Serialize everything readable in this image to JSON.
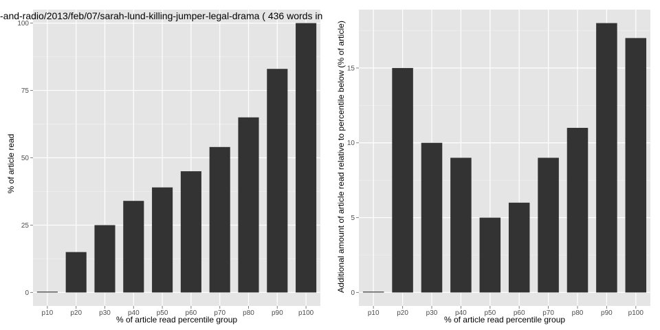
{
  "colors": {
    "panel_background": "#e5e5e5",
    "major_grid": "#ffffff",
    "minor_grid": "#f2f2f2",
    "bar": "#333333",
    "tick_label": "#4d4d4d",
    "text": "#000000"
  },
  "chart_data": [
    {
      "type": "bar",
      "title": "-and-radio/2013/feb/07/sarah-lund-killing-jumper-legal-drama ( 436 words in",
      "xlabel": "% of article read percentile group",
      "ylabel": "% of article read",
      "categories": [
        "p10",
        "p20",
        "p30",
        "p40",
        "p50",
        "p60",
        "p70",
        "p80",
        "p90",
        "p100"
      ],
      "values": [
        0,
        15,
        25,
        34,
        39,
        45,
        54,
        65,
        83,
        100
      ],
      "ylim": [
        -5,
        105
      ],
      "yticks": [
        0,
        25,
        50,
        75,
        100
      ],
      "ytick_labels": [
        "0",
        "25",
        "50",
        "75",
        "100"
      ],
      "grid": true,
      "legend": "none"
    },
    {
      "type": "bar",
      "title": "",
      "xlabel": "% of article read percentile group",
      "ylabel": "Additional amount of article read relative to percentile below (% of article)",
      "categories": [
        "p10",
        "p20",
        "p30",
        "p40",
        "p50",
        "p60",
        "p70",
        "p80",
        "p90",
        "p100"
      ],
      "values": [
        0,
        15,
        10,
        9,
        5,
        6,
        9,
        11,
        18,
        17
      ],
      "ylim": [
        -0.9,
        18.9
      ],
      "yticks": [
        0,
        5,
        10,
        15
      ],
      "ytick_labels": [
        "0",
        "5",
        "10",
        "15"
      ],
      "grid": true,
      "legend": "none"
    }
  ]
}
